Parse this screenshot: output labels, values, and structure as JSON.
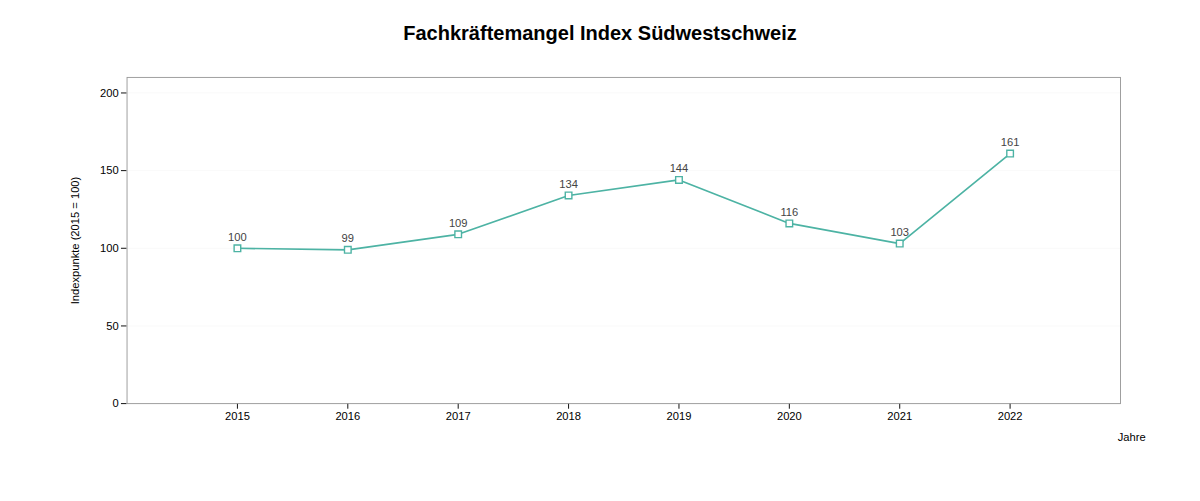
{
  "chart_data": {
    "type": "line",
    "title": "Fachkräftemangel Index Südwestschweiz",
    "xlabel": "Jahre",
    "ylabel": "Indexpunkte (2015 = 100)",
    "x": [
      2015,
      2016,
      2017,
      2018,
      2019,
      2020,
      2021,
      2022
    ],
    "values": [
      100,
      99,
      109,
      134,
      144,
      116,
      103,
      161
    ],
    "color": "#4db3a4",
    "marker": "square",
    "xlim": [
      2014,
      2023
    ],
    "xticks": [
      2015,
      2016,
      2017,
      2018,
      2019,
      2020,
      2021,
      2022
    ],
    "ylim": [
      0,
      210
    ],
    "yticks": [
      0,
      50,
      100,
      150,
      200
    ],
    "grid": true,
    "data_labels": true
  }
}
